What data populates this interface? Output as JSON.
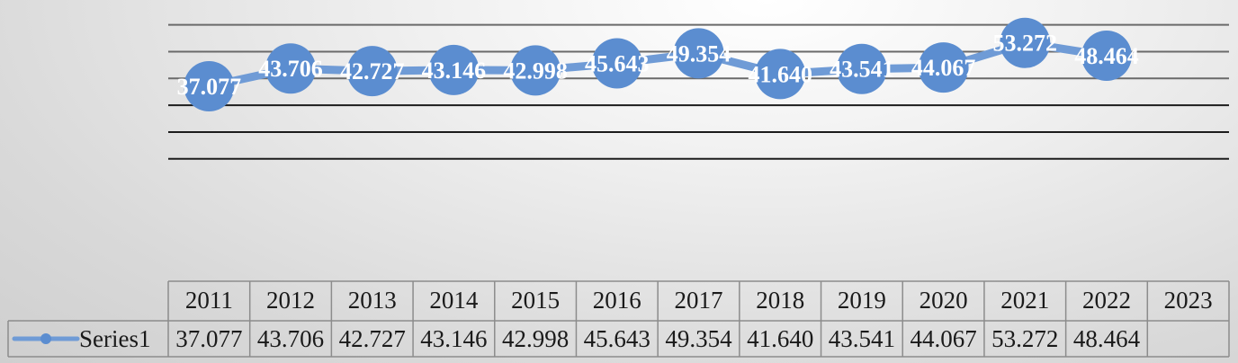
{
  "chart_data": {
    "type": "line",
    "categories": [
      "2011",
      "2012",
      "2013",
      "2014",
      "2015",
      "2016",
      "2017",
      "2018",
      "2019",
      "2020",
      "2021",
      "2022",
      "2023"
    ],
    "series": [
      {
        "name": "Series1",
        "values": [
          37.077,
          43.706,
          42.727,
          43.146,
          42.998,
          45.643,
          49.354,
          41.64,
          43.541,
          44.067,
          53.272,
          48.464,
          null
        ],
        "labels": [
          "37.077",
          "43.706",
          "42.727",
          "43.146",
          "42.998",
          "45.643",
          "49.354",
          "41.640",
          "43.541",
          "44.067",
          "53.272",
          "48.464",
          ""
        ]
      }
    ],
    "title": "",
    "xlabel": "",
    "ylabel": "",
    "ylim": [
      -60,
      70
    ],
    "grid": true,
    "data_table": true,
    "legend_key_in_table": true,
    "colors": {
      "line": "#6f9bd6",
      "marker": "#5b8dd0",
      "grid": "#1c1c1c",
      "table_border": "#8c8c8c"
    }
  }
}
